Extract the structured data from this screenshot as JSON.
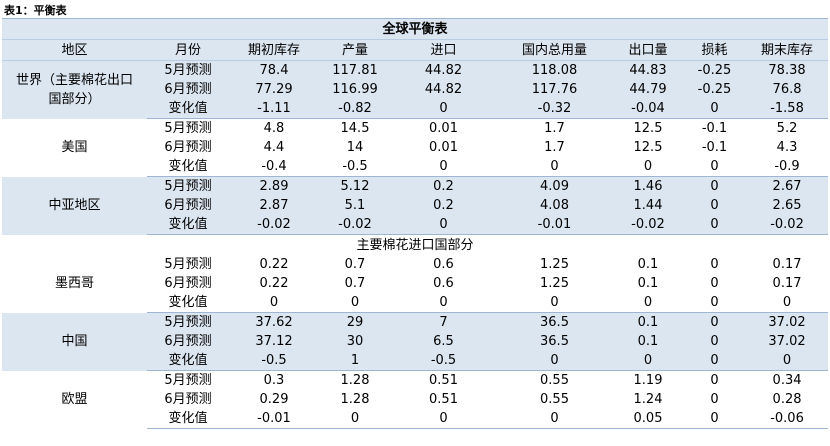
{
  "caption": "表1：平衡表",
  "title": "全球平衡表",
  "headers": [
    "地区",
    "月份",
    "期初库存",
    "产量",
    "进口",
    "国内总用量",
    "出口量",
    "损耗",
    "期末库存"
  ],
  "section_label": "主要棉花进口国部分",
  "groups": [
    {
      "region_lines": [
        "世界（主要棉花出口",
        "国部分）"
      ],
      "rows": [
        {
          "month": "5月预测",
          "values": [
            "78.4",
            "117.81",
            "44.82",
            "118.08",
            "44.83",
            "-0.25",
            "78.38"
          ]
        },
        {
          "month": "6月预测",
          "values": [
            "77.29",
            "116.99",
            "44.82",
            "117.76",
            "44.79",
            "-0.25",
            "76.8"
          ]
        },
        {
          "month": "变化值",
          "values": [
            "-1.11",
            "-0.82",
            "0",
            "-0.32",
            "-0.04",
            "0",
            "-1.58"
          ]
        }
      ]
    },
    {
      "region_lines": [
        "美国"
      ],
      "rows": [
        {
          "month": "5月预测",
          "values": [
            "4.8",
            "14.5",
            "0.01",
            "1.7",
            "12.5",
            "-0.1",
            "5.2"
          ]
        },
        {
          "month": "6月预测",
          "values": [
            "4.4",
            "14",
            "0.01",
            "1.7",
            "12.5",
            "-0.1",
            "4.3"
          ]
        },
        {
          "month": "变化值",
          "values": [
            "-0.4",
            "-0.5",
            "0",
            "0",
            "0",
            "0",
            "-0.9"
          ]
        }
      ]
    },
    {
      "region_lines": [
        "中亚地区"
      ],
      "rows": [
        {
          "month": "5月预测",
          "values": [
            "2.89",
            "5.12",
            "0.2",
            "4.09",
            "1.46",
            "0",
            "2.67"
          ]
        },
        {
          "month": "6月预测",
          "values": [
            "2.87",
            "5.1",
            "0.2",
            "4.08",
            "1.44",
            "0",
            "2.65"
          ]
        },
        {
          "month": "变化值",
          "values": [
            "-0.02",
            "-0.02",
            "0",
            "-0.01",
            "-0.02",
            "0",
            "-0.02"
          ]
        }
      ]
    },
    {
      "region_lines": [
        "墨西哥"
      ],
      "rows": [
        {
          "month": "5月预测",
          "values": [
            "0.22",
            "0.7",
            "0.6",
            "1.25",
            "0.1",
            "0",
            "0.17"
          ]
        },
        {
          "month": "6月预测",
          "values": [
            "0.22",
            "0.7",
            "0.6",
            "1.25",
            "0.1",
            "0",
            "0.17"
          ]
        },
        {
          "month": "变化值",
          "values": [
            "0",
            "0",
            "0",
            "0",
            "0",
            "0",
            "0"
          ]
        }
      ]
    },
    {
      "region_lines": [
        "中国"
      ],
      "rows": [
        {
          "month": "5月预测",
          "values": [
            "37.62",
            "29",
            "7",
            "36.5",
            "0.1",
            "0",
            "37.02"
          ]
        },
        {
          "month": "6月预测",
          "values": [
            "37.12",
            "30",
            "6.5",
            "36.5",
            "0.1",
            "0",
            "37.02"
          ]
        },
        {
          "month": "变化值",
          "values": [
            "-0.5",
            "1",
            "-0.5",
            "0",
            "0",
            "0",
            "0"
          ]
        }
      ]
    },
    {
      "region_lines": [
        "欧盟"
      ],
      "rows": [
        {
          "month": "5月预测",
          "values": [
            "0.3",
            "1.28",
            "0.51",
            "0.55",
            "1.19",
            "0",
            "0.34"
          ]
        },
        {
          "month": "6月预测",
          "values": [
            "0.29",
            "1.28",
            "0.51",
            "0.55",
            "1.24",
            "0",
            "0.28"
          ]
        },
        {
          "month": "变化值",
          "values": [
            "-0.01",
            "0",
            "0",
            "0",
            "0.05",
            "0",
            "-0.06"
          ]
        }
      ]
    }
  ]
}
